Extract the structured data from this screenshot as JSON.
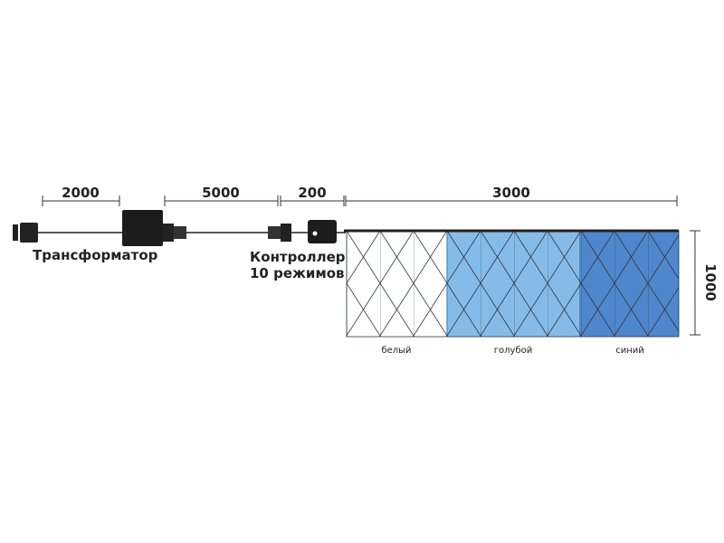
{
  "dimensions": [
    "2000",
    "5000",
    "200",
    "3000",
    "1000"
  ],
  "components": {
    "transformer": "Трансформатор",
    "controller": [
      "Контроллер",
      "10 режимов"
    ]
  },
  "sections": [
    "белый",
    "голубой",
    "синий"
  ]
}
